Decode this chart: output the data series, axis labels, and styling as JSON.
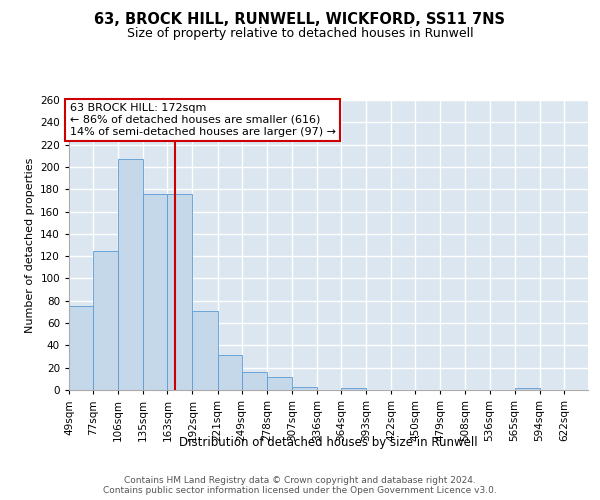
{
  "title1": "63, BROCK HILL, RUNWELL, WICKFORD, SS11 7NS",
  "title2": "Size of property relative to detached houses in Runwell",
  "xlabel": "Distribution of detached houses by size in Runwell",
  "ylabel": "Number of detached properties",
  "bins": [
    49,
    77,
    106,
    135,
    163,
    192,
    221,
    249,
    278,
    307,
    336,
    364,
    393,
    422,
    450,
    479,
    508,
    536,
    565,
    594,
    622
  ],
  "counts": [
    75,
    125,
    207,
    176,
    176,
    71,
    31,
    16,
    12,
    3,
    0,
    2,
    0,
    0,
    0,
    0,
    0,
    0,
    2,
    0,
    0
  ],
  "property_size": 172,
  "annotation_line1": "63 BROCK HILL: 172sqm",
  "annotation_line2": "← 86% of detached houses are smaller (616)",
  "annotation_line3": "14% of semi-detached houses are larger (97) →",
  "bar_color": "#c5d8ea",
  "bar_edge_color": "#5b9bd5",
  "redline_color": "#cc0000",
  "annotation_box_color": "#ffffff",
  "annotation_box_edge": "#cc0000",
  "background_color": "#dce6f0",
  "grid_color": "#ffffff",
  "ylim": [
    0,
    260
  ],
  "yticks": [
    0,
    20,
    40,
    60,
    80,
    100,
    120,
    140,
    160,
    180,
    200,
    220,
    240,
    260
  ],
  "footer_text": "Contains HM Land Registry data © Crown copyright and database right 2024.\nContains public sector information licensed under the Open Government Licence v3.0.",
  "title1_fontsize": 10.5,
  "title2_fontsize": 9,
  "xlabel_fontsize": 8.5,
  "ylabel_fontsize": 8,
  "tick_fontsize": 7.5,
  "annotation_fontsize": 8,
  "footer_fontsize": 6.5
}
